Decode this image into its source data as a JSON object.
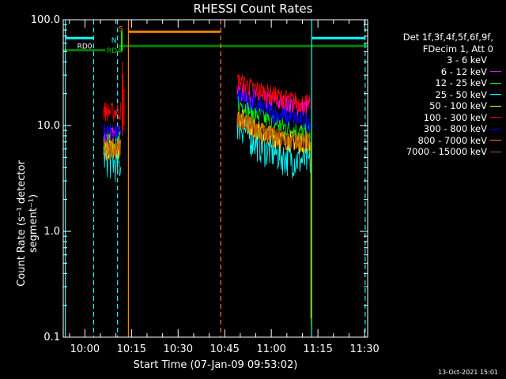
{
  "chart_data": {
    "type": "line",
    "title": "RHESSI Count Rates",
    "xlabel": "Start Time (07-Jan-09 09:53:02)",
    "ylabel": "Count Rate (s⁻¹ detector segment⁻¹)",
    "yscale": "log",
    "ylim": [
      0.1,
      100.0
    ],
    "y_tick_labels": [
      "0.1",
      "1.0",
      "10.0",
      "100.0"
    ],
    "x_tick_labels": [
      "10:00",
      "10:15",
      "10:30",
      "10:45",
      "11:00",
      "11:15",
      "11:30"
    ],
    "x_tick_minutes": [
      60,
      75,
      90,
      105,
      120,
      135,
      150
    ],
    "xlim_minutes": [
      53.03,
      151.0
    ],
    "grid": false,
    "legend_position": "right",
    "legend_header": [
      "Det 1f,3f,4f,5f,6f,9f,",
      "FDecim 1, Att 0"
    ],
    "series": [
      {
        "name": "3 - 6 keV",
        "color": "#000000",
        "seg1": [
          7.2,
          7.5,
          7.8
        ],
        "seg2": [
          15.0,
          12.0,
          10.0,
          8.8,
          8.2,
          7.8
        ]
      },
      {
        "name": "6 - 12 keV",
        "color": "#ff00ff",
        "seg1": [
          7.8,
          8.0,
          8.4
        ],
        "seg2": [
          22.0,
          19.0,
          17.5,
          16.5,
          15.5,
          15.0
        ]
      },
      {
        "name": "12 - 25 keV",
        "color": "#00ff00",
        "seg1": [
          6.8,
          7.0,
          7.4
        ],
        "seg2": [
          17.0,
          13.5,
          11.5,
          10.0,
          9.0,
          8.5
        ]
      },
      {
        "name": "25 - 50 keV",
        "color": "#00ffff",
        "seg1": [
          5.2,
          4.5,
          4.2
        ],
        "seg2": [
          11.0,
          7.5,
          6.0,
          5.2,
          4.8,
          4.6
        ]
      },
      {
        "name": "50 - 100 keV",
        "color": "#ffff00",
        "seg1": [
          6.2,
          6.0,
          6.4
        ],
        "seg2": [
          13.0,
          9.8,
          8.5,
          7.6,
          7.2,
          7.0
        ]
      },
      {
        "name": "100 - 300 keV",
        "color": "#ff0000",
        "seg1": [
          14.0,
          13.5,
          14.0
        ],
        "seg2": [
          27.0,
          23.0,
          20.5,
          18.5,
          17.0,
          16.0
        ]
      },
      {
        "name": "300 - 800 keV",
        "color": "#0000ff",
        "seg1": [
          8.8,
          8.5,
          9.0
        ],
        "seg2": [
          20.0,
          16.0,
          14.0,
          12.5,
          11.5,
          11.0
        ]
      },
      {
        "name": "800 - 7000 keV",
        "color": "#ff8000",
        "seg1": [
          6.0,
          5.8,
          6.2
        ],
        "seg2": [
          12.0,
          9.5,
          8.2,
          7.5,
          7.0,
          6.8
        ]
      },
      {
        "name": "7000 - 15000 keV",
        "color": "#b06000",
        "seg1": [
          6.5,
          6.2,
          6.6
        ],
        "seg2": [
          12.5,
          10.0,
          8.6,
          7.8,
          7.3,
          7.0
        ]
      }
    ],
    "attenuator_labels": {
      "rd0": "RD0",
      "rd4": "RD4",
      "n": "N",
      "s": "S"
    },
    "footer": "13-Oct-2021 15:01"
  }
}
